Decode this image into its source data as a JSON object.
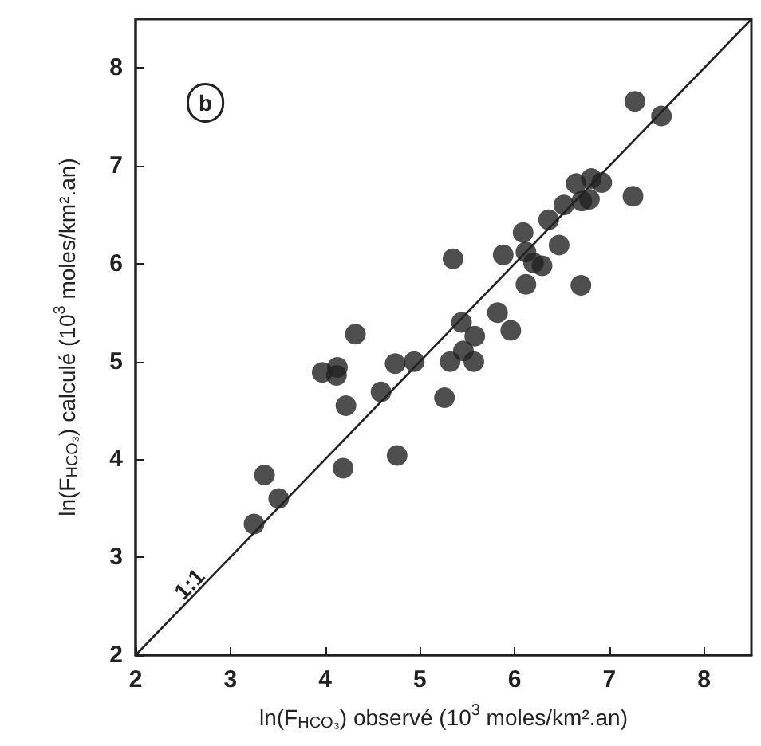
{
  "chart_data": {
    "type": "scatter",
    "xlabel": "ln(F$_{HCO₃}$) observé (10$^{3}$ moles/km².an)",
    "ylabel": "ln(F$_{HCO₃}$) calculé (10$^{3}$ moles/km².an)",
    "annotations": [
      "b"
    ],
    "xlim": [
      2,
      8.5
    ],
    "ylim": [
      2,
      8.5
    ],
    "xticks": [
      2,
      3,
      4,
      5,
      6,
      7,
      8
    ],
    "yticks": [
      2,
      3,
      4,
      5,
      6,
      7,
      8
    ],
    "grid": false,
    "series": [
      {
        "color": "#222222",
        "marker": "circle",
        "x": [
          7.27,
          7.55,
          7.25,
          6.65,
          6.81,
          6.92,
          6.71,
          6.79,
          6.52,
          6.36,
          6.09,
          6.47,
          5.88,
          6.12,
          6.2,
          6.29,
          5.35,
          6.12,
          6.7,
          5.82,
          5.96,
          5.44,
          5.58,
          4.32,
          4.13,
          4.12,
          3.97,
          4.74,
          4.94,
          5.32,
          5.46,
          5.57,
          4.59,
          4.22,
          5.26,
          4.76,
          4.19,
          3.36,
          3.51,
          3.25
        ],
        "values": [
          7.66,
          7.51,
          6.69,
          6.82,
          6.87,
          6.83,
          6.64,
          6.66,
          6.6,
          6.45,
          6.32,
          6.19,
          6.09,
          6.12,
          6.01,
          5.98,
          6.05,
          5.79,
          5.78,
          5.5,
          5.32,
          5.4,
          5.26,
          5.28,
          4.94,
          4.86,
          4.89,
          4.98,
          5.0,
          5.0,
          5.11,
          5.0,
          4.69,
          4.55,
          4.63,
          4.04,
          3.91,
          3.84,
          3.6,
          3.34
        ]
      },
      {
        "type": "line",
        "name": "1:1",
        "color": "#222222",
        "marker": "none",
        "line_style": "solid",
        "x": [
          2,
          8.5
        ],
        "values": [
          2,
          8.5
        ]
      }
    ]
  }
}
